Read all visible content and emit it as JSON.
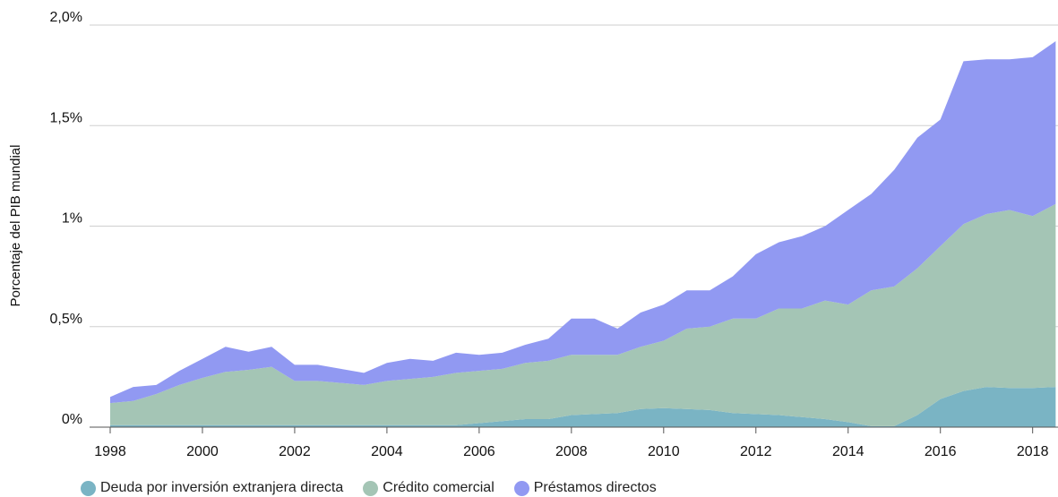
{
  "chart_data": {
    "type": "area",
    "stacked": true,
    "y_label": "Porcentaje del PIB mundial",
    "x": [
      1998,
      1998.5,
      1999,
      1999.5,
      2000,
      2000.5,
      2001,
      2001.5,
      2002,
      2002.5,
      2003,
      2003.5,
      2004,
      2004.5,
      2005,
      2005.5,
      2006,
      2006.5,
      2007,
      2007.5,
      2008,
      2008.5,
      2009,
      2009.5,
      2010,
      2010.5,
      2011,
      2011.5,
      2012,
      2012.5,
      2013,
      2013.5,
      2014,
      2014.5,
      2015,
      2015.5,
      2016,
      2016.5,
      2017,
      2017.5,
      2018,
      2018.5
    ],
    "series": [
      {
        "name": "Deuda por inversión extranjera directa",
        "color": "#7ab4c4",
        "values": [
          0.01,
          0.01,
          0.01,
          0.01,
          0.01,
          0.01,
          0.01,
          0.01,
          0.01,
          0.01,
          0.01,
          0.01,
          0.01,
          0.01,
          0.01,
          0.01,
          0.02,
          0.03,
          0.04,
          0.04,
          0.06,
          0.065,
          0.07,
          0.09,
          0.095,
          0.09,
          0.085,
          0.07,
          0.065,
          0.06,
          0.05,
          0.04,
          0.025,
          0.005,
          0.005,
          0.06,
          0.14,
          0.18,
          0.2,
          0.195,
          0.195,
          0.2
        ]
      },
      {
        "name": "Crédito comercial",
        "color": "#a4c5b5",
        "values": [
          0.11,
          0.12,
          0.155,
          0.2,
          0.235,
          0.265,
          0.275,
          0.29,
          0.22,
          0.22,
          0.21,
          0.2,
          0.22,
          0.23,
          0.24,
          0.26,
          0.26,
          0.26,
          0.28,
          0.29,
          0.3,
          0.295,
          0.29,
          0.31,
          0.335,
          0.4,
          0.415,
          0.47,
          0.475,
          0.53,
          0.54,
          0.59,
          0.585,
          0.675,
          0.695,
          0.73,
          0.76,
          0.83,
          0.86,
          0.885,
          0.855,
          0.91
        ]
      },
      {
        "name": "Préstamos directos",
        "color": "#9199f2",
        "values": [
          0.03,
          0.07,
          0.045,
          0.07,
          0.095,
          0.125,
          0.09,
          0.1,
          0.08,
          0.08,
          0.07,
          0.06,
          0.09,
          0.1,
          0.08,
          0.1,
          0.08,
          0.08,
          0.09,
          0.11,
          0.18,
          0.18,
          0.13,
          0.17,
          0.18,
          0.19,
          0.18,
          0.21,
          0.32,
          0.33,
          0.36,
          0.37,
          0.47,
          0.48,
          0.58,
          0.65,
          0.63,
          0.81,
          0.77,
          0.75,
          0.79,
          0.81
        ]
      }
    ],
    "xlim": [
      1998,
      2018.55
    ],
    "xticks": [
      1998,
      2000,
      2002,
      2004,
      2006,
      2008,
      2010,
      2012,
      2014,
      2016,
      2018
    ],
    "ylim": [
      0,
      2.0
    ],
    "yticks": [
      {
        "value": 0,
        "label": "0%"
      },
      {
        "value": 0.5,
        "label": "0,5%"
      },
      {
        "value": 1,
        "label": "1%"
      },
      {
        "value": 1.5,
        "label": "1,5%"
      },
      {
        "value": 2.0,
        "label": "2,0%"
      }
    ],
    "grid": true,
    "legend": "bottom"
  }
}
